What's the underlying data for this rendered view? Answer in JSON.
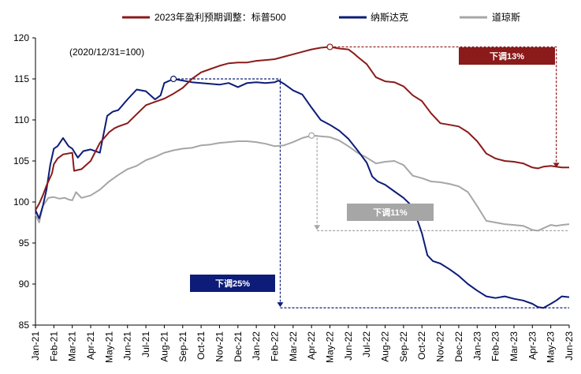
{
  "chart_data": {
    "type": "line",
    "note": "(2020/12/31=100)",
    "ylim": [
      85,
      120
    ],
    "yticks": [
      85,
      90,
      95,
      100,
      105,
      110,
      115,
      120
    ],
    "x_categories": [
      "Jan-21",
      "Feb-21",
      "Mar-21",
      "Apr-21",
      "May-21",
      "Jun-21",
      "Jul-21",
      "Aug-21",
      "Sep-21",
      "Oct-21",
      "Nov-21",
      "Dec-21",
      "Jan-22",
      "Feb-22",
      "Mar-22",
      "Apr-22",
      "May-22",
      "Jun-22",
      "Jul-22",
      "Aug-22",
      "Sep-22",
      "Oct-22",
      "Nov-22",
      "Dec-22",
      "Jan-23",
      "Feb-23",
      "Mar-23",
      "Apr-23",
      "May-23",
      "Jun-23"
    ],
    "legend_position": "top",
    "series": [
      {
        "name": "2023年盈利预期调整：标普500",
        "color": "#8b1a1a",
        "x": [
          0,
          0.2,
          0.4,
          0.6,
          0.9,
          1.0,
          1.2,
          1.5,
          2.0,
          2.1,
          2.5,
          3.0,
          3.5,
          4.0,
          4.3,
          4.5,
          5.0,
          5.5,
          6.0,
          6.5,
          7.0,
          7.5,
          8.0,
          8.5,
          9.0,
          9.5,
          10.0,
          10.5,
          11.0,
          11.5,
          12.0,
          12.5,
          13.0,
          13.5,
          14.0,
          14.5,
          15.0,
          15.5,
          16.0,
          16.5,
          17.0,
          17.3,
          17.5,
          18.0,
          18.5,
          19.0,
          19.5,
          20.0,
          20.5,
          21.0,
          21.5,
          22.0,
          22.5,
          23.0,
          23.5,
          24.0,
          24.5,
          25.0,
          25.5,
          26.0,
          26.5,
          27.0,
          27.3,
          27.6,
          28.0,
          28.3,
          28.6,
          29.0
        ],
        "values": [
          99.0,
          99.8,
          100.8,
          102.0,
          103.5,
          104.6,
          105.3,
          105.8,
          106.0,
          103.8,
          104.0,
          105.0,
          107.2,
          108.5,
          109.0,
          109.2,
          109.6,
          110.7,
          111.8,
          112.2,
          112.6,
          113.2,
          113.9,
          115.0,
          115.8,
          116.2,
          116.6,
          116.9,
          117.0,
          117.0,
          117.2,
          117.3,
          117.4,
          117.7,
          118.0,
          118.3,
          118.6,
          118.8,
          118.9,
          118.7,
          118.6,
          118.1,
          117.7,
          116.8,
          115.2,
          114.7,
          114.6,
          114.1,
          113.0,
          112.3,
          110.8,
          109.6,
          109.4,
          109.2,
          108.5,
          107.4,
          105.9,
          105.3,
          105.0,
          104.9,
          104.7,
          104.2,
          104.1,
          104.3,
          104.4,
          104.3,
          104.2,
          104.2
        ]
      },
      {
        "name": "纳斯达克",
        "color": "#0d1c78",
        "x": [
          0,
          0.2,
          0.4,
          0.6,
          0.8,
          1.0,
          1.2,
          1.5,
          1.8,
          2.0,
          2.3,
          2.6,
          3.0,
          3.5,
          3.9,
          4.2,
          4.5,
          5.0,
          5.5,
          6.0,
          6.5,
          6.8,
          7.0,
          7.5,
          8.0,
          8.5,
          9.0,
          9.5,
          10.0,
          10.5,
          11.0,
          11.5,
          12.0,
          12.5,
          13.0,
          13.2,
          13.5,
          14.0,
          14.5,
          15.0,
          15.5,
          16.0,
          16.5,
          17.0,
          17.5,
          18.0,
          18.3,
          18.6,
          19.0,
          19.5,
          20.0,
          20.5,
          21.0,
          21.3,
          21.6,
          22.0,
          22.5,
          23.0,
          23.5,
          24.0,
          24.5,
          25.0,
          25.5,
          26.0,
          26.5,
          27.0,
          27.3,
          27.6,
          28.0,
          28.3,
          28.6,
          29.0
        ],
        "values": [
          99.0,
          98.0,
          99.5,
          101.5,
          104.5,
          106.5,
          106.8,
          107.8,
          106.8,
          106.5,
          105.4,
          106.2,
          106.4,
          106.0,
          110.5,
          111.0,
          111.2,
          112.5,
          113.7,
          113.5,
          112.5,
          113.0,
          114.5,
          115.0,
          114.8,
          114.6,
          114.5,
          114.4,
          114.3,
          114.5,
          114.0,
          114.5,
          114.6,
          114.5,
          114.6,
          114.8,
          114.4,
          113.6,
          113.1,
          111.5,
          110.0,
          109.4,
          108.7,
          107.7,
          106.3,
          104.8,
          103.1,
          102.5,
          102.1,
          101.3,
          100.5,
          99.4,
          96.2,
          93.5,
          92.8,
          92.5,
          91.8,
          91.0,
          90.0,
          89.2,
          88.5,
          88.3,
          88.5,
          88.2,
          88.0,
          87.6,
          87.2,
          87.1,
          87.6,
          88.0,
          88.5,
          88.4
        ]
      },
      {
        "name": "道琼斯",
        "color": "#a6a6a6",
        "x": [
          0,
          0.2,
          0.4,
          0.7,
          1.0,
          1.3,
          1.6,
          1.8,
          2.0,
          2.2,
          2.5,
          3.0,
          3.5,
          4.0,
          4.5,
          5.0,
          5.5,
          6.0,
          6.5,
          7.0,
          7.5,
          8.0,
          8.5,
          9.0,
          9.5,
          10.0,
          10.5,
          11.0,
          11.5,
          12.0,
          12.5,
          13.0,
          13.5,
          14.0,
          14.5,
          15.0,
          15.5,
          16.0,
          16.5,
          17.0,
          17.5,
          18.0,
          18.5,
          19.0,
          19.5,
          20.0,
          20.5,
          21.0,
          21.5,
          22.0,
          22.5,
          23.0,
          23.5,
          24.0,
          24.5,
          25.0,
          25.5,
          26.0,
          26.5,
          27.0,
          27.3,
          27.6,
          28.0,
          28.3,
          28.6,
          29.0
        ],
        "values": [
          98.5,
          97.5,
          99.5,
          100.5,
          100.6,
          100.4,
          100.5,
          100.3,
          100.2,
          101.2,
          100.5,
          100.8,
          101.5,
          102.5,
          103.3,
          104.0,
          104.4,
          105.1,
          105.5,
          106.0,
          106.3,
          106.5,
          106.6,
          106.9,
          107.0,
          107.2,
          107.3,
          107.4,
          107.4,
          107.3,
          107.1,
          106.8,
          106.9,
          107.3,
          107.8,
          108.1,
          108.0,
          107.9,
          107.5,
          106.8,
          106.0,
          105.4,
          104.7,
          104.9,
          105.0,
          104.5,
          103.2,
          102.9,
          102.5,
          102.4,
          102.2,
          101.9,
          101.2,
          99.5,
          97.7,
          97.5,
          97.3,
          97.2,
          97.1,
          96.6,
          96.5,
          96.8,
          97.2,
          97.1,
          97.2,
          97.3
        ]
      }
    ],
    "annotations": [
      {
        "label": "下调13%",
        "color": "#8b1a1a"
      },
      {
        "label": "下调11%",
        "color": "#a6a6a6"
      },
      {
        "label": "下调25%",
        "color": "#0d1c78"
      }
    ]
  }
}
